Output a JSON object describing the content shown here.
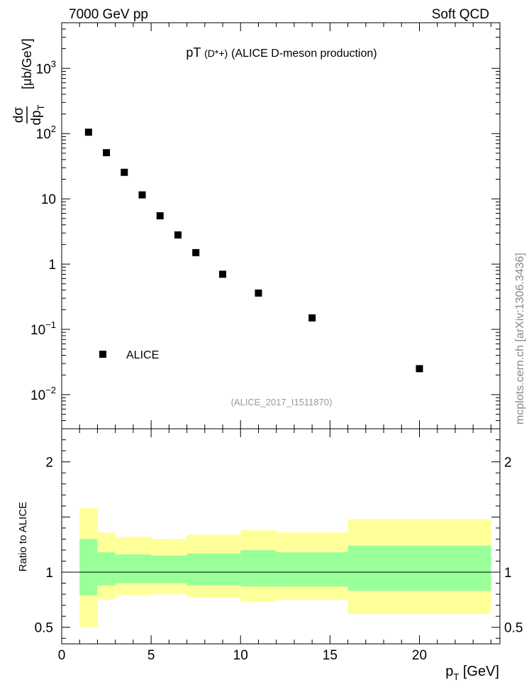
{
  "header": {
    "left": "7000 GeV pp",
    "right": "Soft QCD"
  },
  "title": {
    "prefix": "pT",
    "particle": "(D*+)",
    "suffix": "(ALICE D-meson production)"
  },
  "watermark": "mcplots.cern.ch [arXiv:1306.3436]",
  "analysis_id": "(ALICE_2017_I1511870)",
  "legend": {
    "label": "ALICE"
  },
  "ratio_label": "Ratio to ALICE",
  "colors": {
    "marker": "#000000",
    "band_outer": "#ffff99",
    "band_inner": "#99ff99"
  },
  "chart_data": [
    {
      "type": "scatter",
      "log_y": true,
      "xlabel": "p_T [GeV]",
      "ylabel": "dσ/dp_T [μb/GeV]",
      "xlim": [
        0,
        24.5
      ],
      "ylim": [
        0.003,
        5000
      ],
      "y_ticks": [
        "10^-2",
        "10^-1",
        "1",
        "10",
        "10^2",
        "10^3"
      ],
      "legend_position": "bottom-left",
      "series": [
        {
          "name": "ALICE",
          "x": [
            1.5,
            2.5,
            3.5,
            4.5,
            5.5,
            6.5,
            7.5,
            9,
            11,
            14,
            20
          ],
          "y": [
            105,
            51,
            25.5,
            11.5,
            5.5,
            2.8,
            1.5,
            0.7,
            0.36,
            0.15,
            0.025
          ]
        }
      ]
    },
    {
      "type": "area",
      "ylabel": "Ratio to ALICE",
      "xlim": [
        0,
        24.5
      ],
      "ylim": [
        0.35,
        2.3
      ],
      "y_ticks": [
        "0.5",
        "1",
        "2"
      ],
      "x_ticks": [
        "0",
        "5",
        "10",
        "15",
        "20"
      ],
      "bins": [
        {
          "lo": 1,
          "hi": 2,
          "inner": [
            0.79,
            1.3
          ],
          "outer": [
            0.5,
            1.58
          ]
        },
        {
          "lo": 2,
          "hi": 3,
          "inner": [
            0.88,
            1.18
          ],
          "outer": [
            0.75,
            1.36
          ]
        },
        {
          "lo": 3,
          "hi": 4,
          "inner": [
            0.9,
            1.16
          ],
          "outer": [
            0.79,
            1.32
          ]
        },
        {
          "lo": 4,
          "hi": 5,
          "inner": [
            0.9,
            1.16
          ],
          "outer": [
            0.79,
            1.32
          ]
        },
        {
          "lo": 5,
          "hi": 6,
          "inner": [
            0.9,
            1.15
          ],
          "outer": [
            0.8,
            1.3
          ]
        },
        {
          "lo": 6,
          "hi": 7,
          "inner": [
            0.9,
            1.15
          ],
          "outer": [
            0.8,
            1.3
          ]
        },
        {
          "lo": 7,
          "hi": 8,
          "inner": [
            0.88,
            1.17
          ],
          "outer": [
            0.77,
            1.34
          ]
        },
        {
          "lo": 8,
          "hi": 10,
          "inner": [
            0.88,
            1.17
          ],
          "outer": [
            0.77,
            1.34
          ]
        },
        {
          "lo": 10,
          "hi": 12,
          "inner": [
            0.87,
            1.2
          ],
          "outer": [
            0.73,
            1.38
          ]
        },
        {
          "lo": 12,
          "hi": 16,
          "inner": [
            0.87,
            1.18
          ],
          "outer": [
            0.75,
            1.36
          ]
        },
        {
          "lo": 16,
          "hi": 24,
          "inner": [
            0.83,
            1.24
          ],
          "outer": [
            0.62,
            1.48
          ]
        }
      ],
      "reference_line": 1
    }
  ]
}
